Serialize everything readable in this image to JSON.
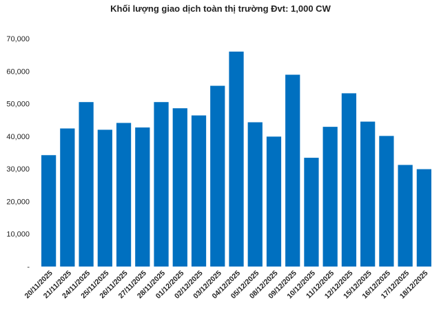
{
  "chart_data": {
    "type": "bar",
    "title": "Khối lượng giao dịch toàn thị trường Đvt: 1,000 CW",
    "xlabel": "",
    "ylabel": "",
    "ylim": [
      0,
      70000
    ],
    "y_ticks": [
      {
        "value": 0,
        "label": "-"
      },
      {
        "value": 10000,
        "label": "10,000"
      },
      {
        "value": 20000,
        "label": "20,000"
      },
      {
        "value": 30000,
        "label": "30,000"
      },
      {
        "value": 40000,
        "label": "40,000"
      },
      {
        "value": 50000,
        "label": "50,000"
      },
      {
        "value": 60000,
        "label": "60,000"
      },
      {
        "value": 70000,
        "label": "70,000"
      }
    ],
    "grid": false,
    "legend": "none",
    "bar_color": "#0070C0",
    "categories": [
      "20/11/2025",
      "21/11/2025",
      "24/11/2025",
      "25/11/2025",
      "26/11/2025",
      "27/11/2025",
      "28/11/2025",
      "01/12/2025",
      "02/12/2025",
      "03/12/2025",
      "04/12/2025",
      "05/12/2025",
      "08/12/2025",
      "09/12/2025",
      "10/12/2025",
      "11/12/2025",
      "12/12/2025",
      "15/12/2025",
      "16/12/2025",
      "17/12/2025",
      "18/12/2025"
    ],
    "values": [
      34200,
      42400,
      50500,
      42000,
      44100,
      42700,
      50500,
      48600,
      46400,
      55500,
      66000,
      44300,
      39900,
      58900,
      33400,
      42900,
      53200,
      44500,
      40100,
      31200,
      29900
    ]
  }
}
